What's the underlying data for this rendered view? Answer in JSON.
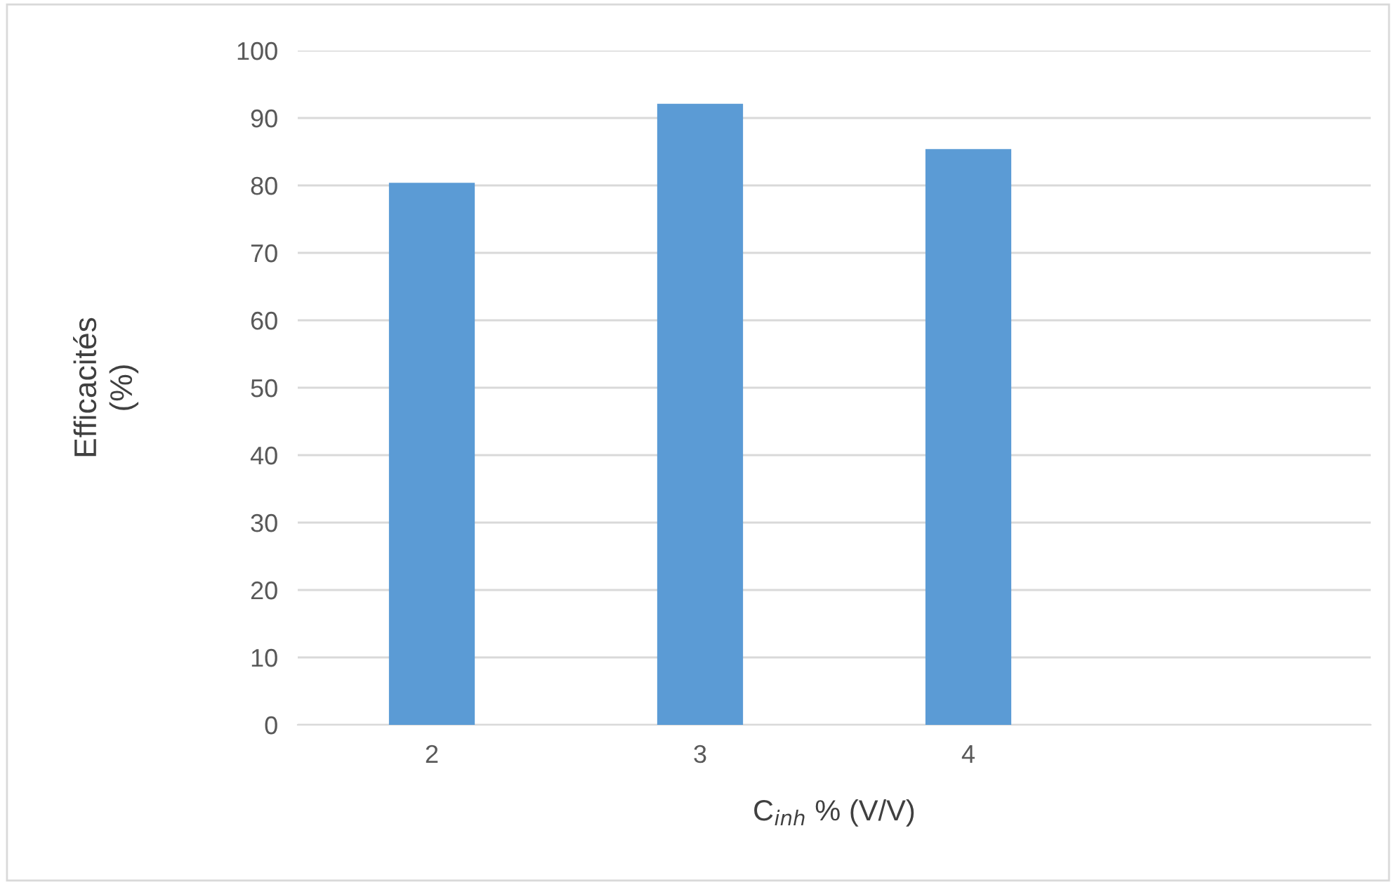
{
  "chart_data": {
    "type": "bar",
    "xlabel": "C$_{inh}$ % (V/V)",
    "ylabel": "Efficacités\n(%)",
    "categories": [
      "2",
      "3",
      "4",
      null
    ],
    "series": [
      {
        "color": "#5b9bd5",
        "values": [
          80.4,
          92.1,
          85.4,
          null
        ]
      }
    ],
    "ylim": [
      0,
      100
    ],
    "yticks": [
      0,
      10,
      20,
      30,
      40,
      50,
      60,
      70,
      80,
      90,
      100
    ],
    "grid": "y",
    "legend": false
  }
}
